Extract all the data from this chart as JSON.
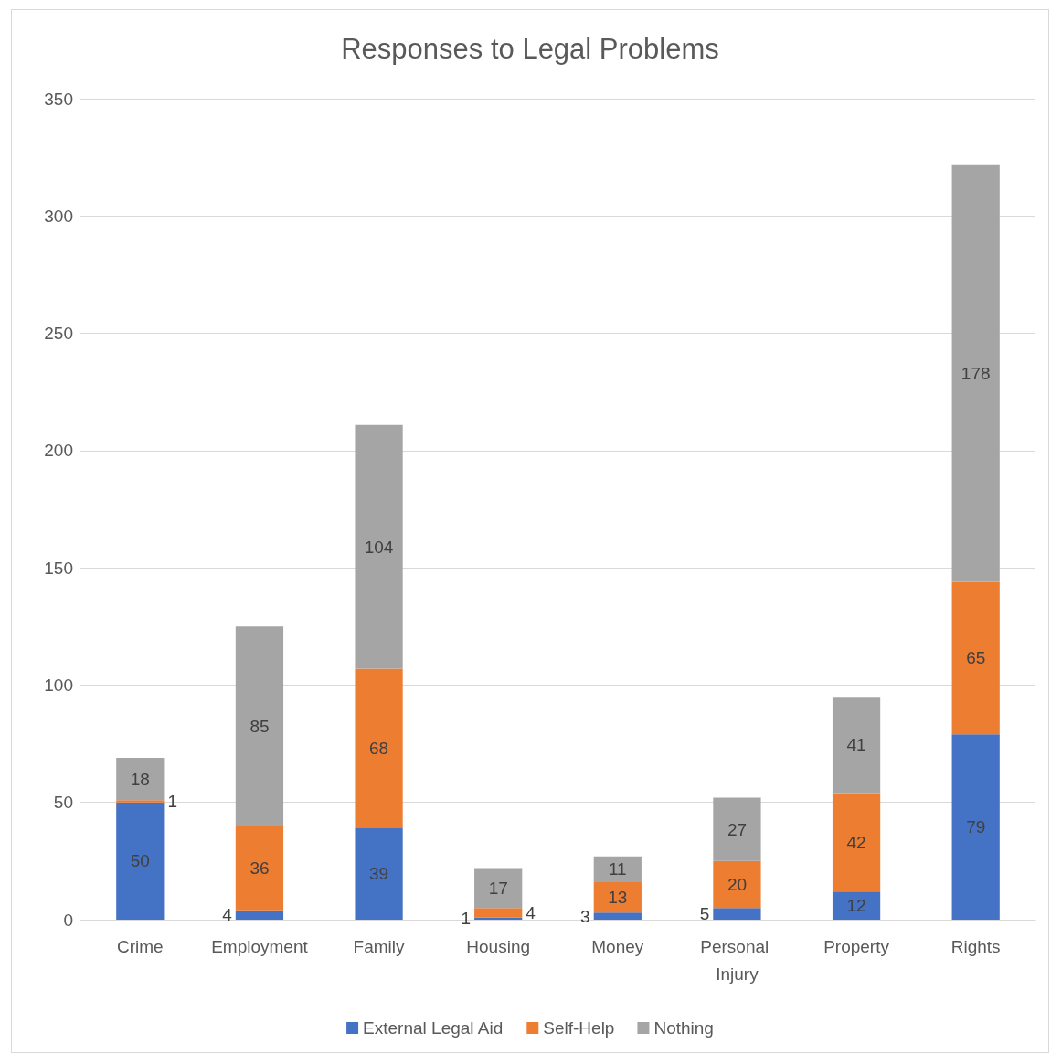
{
  "chart_data": {
    "type": "bar",
    "title": "Responses to Legal Problems",
    "categories": [
      "Crime",
      "Employment",
      "Family",
      "Housing",
      "Money",
      "Personal Injury",
      "Property",
      "Rights"
    ],
    "series": [
      {
        "name": "External Legal Aid",
        "color": "#4472c4",
        "values": [
          50,
          4,
          39,
          1,
          3,
          5,
          12,
          79
        ]
      },
      {
        "name": "Self-Help",
        "color": "#ed7d31",
        "values": [
          1,
          36,
          68,
          4,
          13,
          20,
          42,
          65
        ]
      },
      {
        "name": "Nothing",
        "color": "#a5a5a5",
        "values": [
          18,
          85,
          104,
          17,
          11,
          27,
          41,
          178
        ]
      }
    ],
    "stacked": true,
    "ylim": [
      0,
      350
    ],
    "yticks": [
      0,
      50,
      100,
      150,
      200,
      250,
      300,
      350
    ],
    "grid": "y",
    "legend": "bottom",
    "data_labels": true
  }
}
